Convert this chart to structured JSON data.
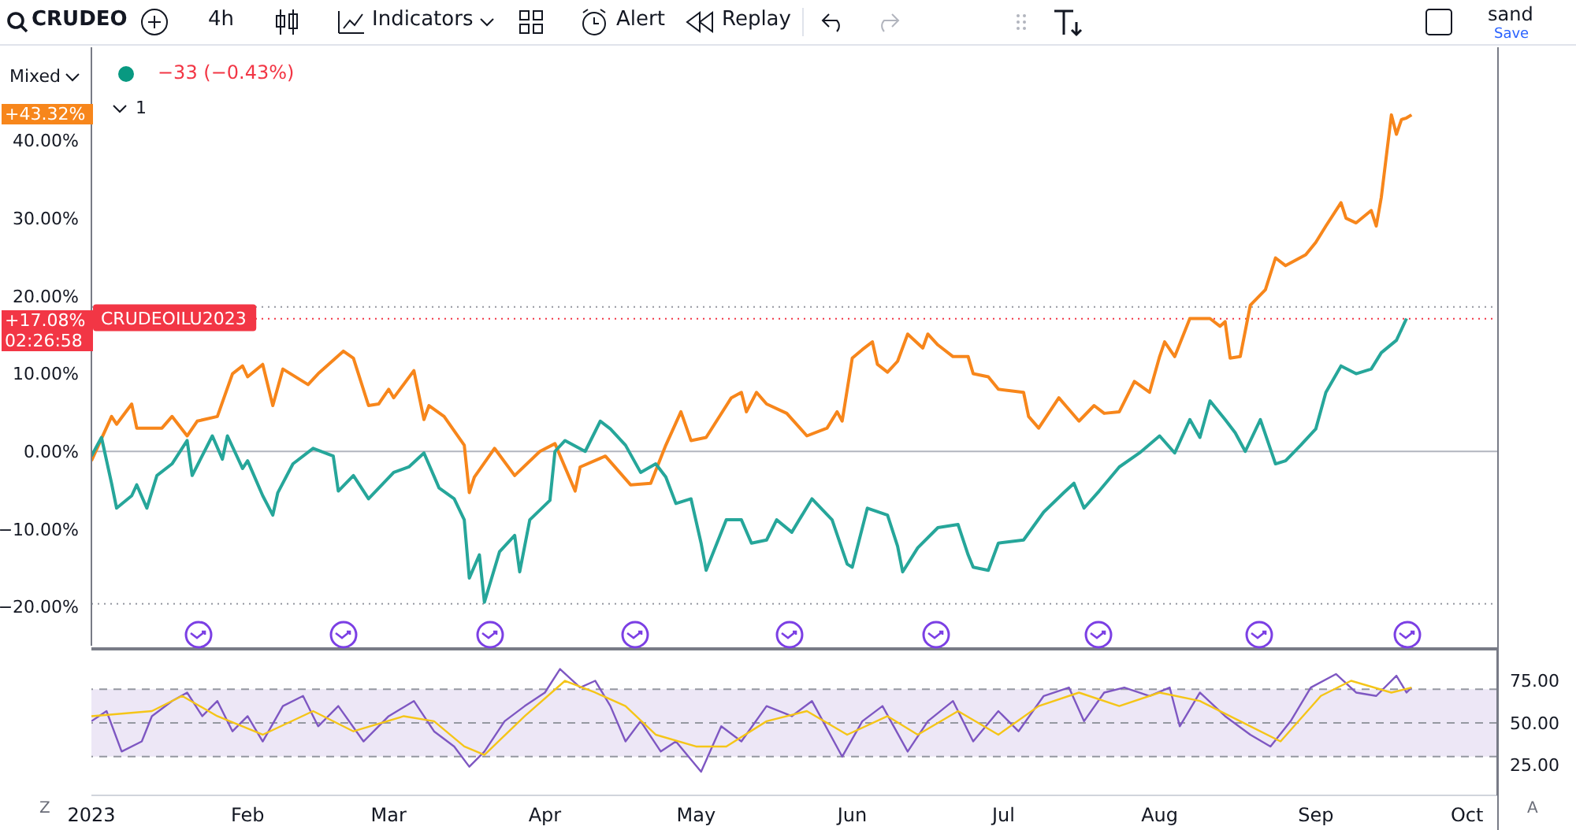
{
  "chart_data": [
    {
      "type": "line",
      "xlim": [
        "2023-01-01",
        "2023-10-07"
      ],
      "ylim": [
        -25,
        52
      ],
      "yticks": [
        {
          "value": 40,
          "label": "40.00%"
        },
        {
          "value": 30,
          "label": "30.00%"
        },
        {
          "value": 20,
          "label": "20.00%"
        },
        {
          "value": 10,
          "label": "10.00%"
        },
        {
          "value": 0,
          "label": "0.00%"
        },
        {
          "value": -10,
          "label": "−10.00%"
        },
        {
          "value": -20,
          "label": "−20.00%"
        }
      ],
      "tick_labels": "y",
      "grid": false,
      "series": [
        {
          "color": "#f7861b",
          "x": [
            "2023-01-01",
            "2023-01-05",
            "2023-01-06",
            "2023-01-09",
            "2023-01-10",
            "2023-01-15",
            "2023-01-17",
            "2023-01-20",
            "2023-01-22",
            "2023-01-26",
            "2023-01-29",
            "2023-01-31",
            "2023-02-01",
            "2023-02-04",
            "2023-02-06",
            "2023-02-08",
            "2023-02-13",
            "2023-02-15",
            "2023-02-20",
            "2023-02-22",
            "2023-02-25",
            "2023-02-27",
            "2023-03-01",
            "2023-03-02",
            "2023-03-06",
            "2023-03-08",
            "2023-03-09",
            "2023-03-12",
            "2023-03-16",
            "2023-03-17",
            "2023-03-18",
            "2023-03-22",
            "2023-03-26",
            "2023-03-31",
            "2023-04-03",
            "2023-04-07",
            "2023-04-08",
            "2023-04-13",
            "2023-04-18",
            "2023-04-22",
            "2023-04-25",
            "2023-04-28",
            "2023-04-30",
            "2023-05-03",
            "2023-05-08",
            "2023-05-10",
            "2023-05-11",
            "2023-05-13",
            "2023-05-15",
            "2023-05-19",
            "2023-05-23",
            "2023-05-27",
            "2023-05-29",
            "2023-05-30",
            "2023-06-01",
            "2023-06-03",
            "2023-06-05",
            "2023-06-06",
            "2023-06-08",
            "2023-06-10",
            "2023-06-12",
            "2023-06-15",
            "2023-06-16",
            "2023-06-18",
            "2023-06-21",
            "2023-06-24",
            "2023-06-25",
            "2023-06-28",
            "2023-06-30",
            "2023-07-05",
            "2023-07-06",
            "2023-07-08",
            "2023-07-12",
            "2023-07-16",
            "2023-07-19",
            "2023-07-21",
            "2023-07-24",
            "2023-07-27",
            "2023-07-30",
            "2023-08-01",
            "2023-08-02",
            "2023-08-04",
            "2023-08-07",
            "2023-08-11",
            "2023-08-13",
            "2023-08-14",
            "2023-08-15",
            "2023-08-17",
            "2023-08-19",
            "2023-08-22",
            "2023-08-24",
            "2023-08-26",
            "2023-08-30",
            "2023-09-01",
            "2023-09-03",
            "2023-09-06",
            "2023-09-07",
            "2023-09-09",
            "2023-09-12",
            "2023-09-13",
            "2023-09-14",
            "2023-09-16",
            "2023-09-17",
            "2023-09-18",
            "2023-09-19",
            "2023-09-20"
          ],
          "values": [
            -1.2,
            4.5,
            3.5,
            6.1,
            3,
            3,
            4.5,
            2,
            3.9,
            4.5,
            10,
            11,
            9.6,
            11.2,
            5.9,
            10.6,
            8.6,
            10,
            12.9,
            12,
            5.9,
            6.1,
            8,
            6.9,
            10.4,
            4.1,
            5.9,
            4.5,
            0.8,
            -5.3,
            -3.3,
            0.4,
            -3.1,
            0,
            1,
            -5.1,
            -2,
            -0.6,
            -4.3,
            -4.1,
            0.8,
            5.1,
            1.4,
            1.8,
            6.9,
            7.6,
            5.1,
            7.6,
            6.1,
            4.9,
            2,
            3,
            5.1,
            3.9,
            12,
            13.1,
            14.1,
            11.2,
            10.2,
            11.6,
            15.1,
            13.3,
            15.1,
            13.7,
            12.2,
            12.2,
            10,
            9.6,
            8,
            7.6,
            4.5,
            3,
            6.9,
            3.9,
            5.9,
            4.9,
            5.1,
            9,
            7.6,
            12.2,
            14.1,
            12.2,
            17.1,
            17.1,
            16.1,
            16.7,
            12,
            12.2,
            18.8,
            20.8,
            24.9,
            23.9,
            25.3,
            26.9,
            29,
            32,
            30,
            29.4,
            31,
            29,
            32.7,
            43.3,
            40.8,
            42.7,
            42.9,
            43.3
          ]
        },
        {
          "name": "CRUDEOILU2023",
          "color": "#26a69a",
          "x": [
            "2023-01-01",
            "2023-01-03",
            "2023-01-05",
            "2023-01-06",
            "2023-01-09",
            "2023-01-10",
            "2023-01-12",
            "2023-01-14",
            "2023-01-17",
            "2023-01-20",
            "2023-01-21",
            "2023-01-25",
            "2023-01-27",
            "2023-01-28",
            "2023-01-31",
            "2023-02-01",
            "2023-02-04",
            "2023-02-06",
            "2023-02-07",
            "2023-02-10",
            "2023-02-14",
            "2023-02-18",
            "2023-02-19",
            "2023-02-22",
            "2023-02-25",
            "2023-03-02",
            "2023-03-05",
            "2023-03-08",
            "2023-03-11",
            "2023-03-14",
            "2023-03-16",
            "2023-03-17",
            "2023-03-19",
            "2023-03-20",
            "2023-03-23",
            "2023-03-26",
            "2023-03-27",
            "2023-03-29",
            "2023-04-02",
            "2023-04-03",
            "2023-04-05",
            "2023-04-09",
            "2023-04-12",
            "2023-04-14",
            "2023-04-17",
            "2023-04-20",
            "2023-04-23",
            "2023-04-25",
            "2023-04-27",
            "2023-04-30",
            "2023-05-02",
            "2023-05-03",
            "2023-05-07",
            "2023-05-10",
            "2023-05-12",
            "2023-05-15",
            "2023-05-17",
            "2023-05-20",
            "2023-05-24",
            "2023-05-28",
            "2023-05-31",
            "2023-06-01",
            "2023-06-04",
            "2023-06-08",
            "2023-06-10",
            "2023-06-11",
            "2023-06-14",
            "2023-06-18",
            "2023-06-22",
            "2023-06-24",
            "2023-06-25",
            "2023-06-28",
            "2023-06-30",
            "2023-07-05",
            "2023-07-09",
            "2023-07-13",
            "2023-07-15",
            "2023-07-17",
            "2023-07-20",
            "2023-07-24",
            "2023-07-28",
            "2023-08-01",
            "2023-08-04",
            "2023-08-07",
            "2023-08-09",
            "2023-08-11",
            "2023-08-14",
            "2023-08-16",
            "2023-08-18",
            "2023-08-21",
            "2023-08-24",
            "2023-08-26",
            "2023-08-29",
            "2023-09-01",
            "2023-09-03",
            "2023-09-06",
            "2023-09-09",
            "2023-09-12",
            "2023-09-14",
            "2023-09-17",
            "2023-09-18",
            "2023-09-19"
          ],
          "values": [
            -0.6,
            1.8,
            -4.1,
            -7.3,
            -5.7,
            -4.3,
            -7.3,
            -3.1,
            -1.6,
            1.4,
            -3.1,
            2,
            -1,
            2,
            -2.2,
            -1.2,
            -5.7,
            -8.2,
            -5.3,
            -1.6,
            0.4,
            -0.6,
            -5.1,
            -3.1,
            -6.1,
            -2.7,
            -2,
            -0.2,
            -4.7,
            -6.1,
            -8.8,
            -16.3,
            -13.3,
            -19.4,
            -12.9,
            -10.8,
            -15.5,
            -8.8,
            -6.3,
            0,
            1.4,
            0,
            3.9,
            2.9,
            0.8,
            -2.7,
            -1.6,
            -3.3,
            -6.7,
            -6.1,
            -11.8,
            -15.3,
            -8.8,
            -8.8,
            -11.8,
            -11.4,
            -8.8,
            -10.4,
            -6.1,
            -8.8,
            -14.5,
            -14.9,
            -7.3,
            -8.2,
            -12.2,
            -15.5,
            -12.4,
            -9.8,
            -9.4,
            -13.3,
            -14.9,
            -15.3,
            -11.8,
            -11.4,
            -7.8,
            -5.3,
            -4.1,
            -7.3,
            -5.1,
            -2,
            -0.2,
            2,
            -0.2,
            4.1,
            1.8,
            6.5,
            4.1,
            2.4,
            0,
            4.1,
            -1.6,
            -1.2,
            0.8,
            2.9,
            7.6,
            11,
            10,
            10.6,
            12.7,
            14.3,
            15.7,
            17.1
          ]
        }
      ],
      "ref_lines": [
        {
          "axis": "y",
          "value": 0,
          "color": "#b2b5be",
          "line_style": "solid"
        },
        {
          "axis": "y",
          "value": 18.6,
          "color": "#9598a1",
          "line_style": "dotted"
        },
        {
          "axis": "y",
          "value": -19.6,
          "color": "#9598a1",
          "line_style": "dotted"
        },
        {
          "axis": "y",
          "value": 17.08,
          "color": "#f23645",
          "line_style": "dotted"
        }
      ],
      "annotations": [
        "+43.32%",
        "+17.08%",
        "02:26:58",
        "−33 (−0.43%)",
        "CRUDEO",
        "4h",
        "Indicators",
        "Alert",
        "Replay",
        "sand",
        "Save",
        "Mixed",
        "1"
      ]
    },
    {
      "type": "line",
      "xlim": [
        "2023-01-01",
        "2023-10-07"
      ],
      "ylim": [
        7,
        93
      ],
      "xticks": [
        {
          "value": "2023-01-01",
          "label": "2023"
        },
        {
          "value": "2023-02-01",
          "label": "Feb"
        },
        {
          "value": "2023-03-01",
          "label": "Mar"
        },
        {
          "value": "2023-04-01",
          "label": "Apr"
        },
        {
          "value": "2023-05-01",
          "label": "May"
        },
        {
          "value": "2023-06-01",
          "label": "Jun"
        },
        {
          "value": "2023-07-01",
          "label": "Jul"
        },
        {
          "value": "2023-08-01",
          "label": "Aug"
        },
        {
          "value": "2023-09-01",
          "label": "Sep"
        },
        {
          "value": "2023-10-01",
          "label": "Oct"
        }
      ],
      "yticks": [
        {
          "value": 75,
          "label": "75.00"
        },
        {
          "value": 50,
          "label": "50.00"
        },
        {
          "value": 25,
          "label": "25.00"
        }
      ],
      "grid": false,
      "series": [
        {
          "color": "#7e57c2",
          "x": [
            "2023-01-01",
            "2023-01-04",
            "2023-01-07",
            "2023-01-11",
            "2023-01-13",
            "2023-01-17",
            "2023-01-20",
            "2023-01-23",
            "2023-01-26",
            "2023-01-29",
            "2023-02-01",
            "2023-02-04",
            "2023-02-08",
            "2023-02-12",
            "2023-02-15",
            "2023-02-19",
            "2023-02-24",
            "2023-03-01",
            "2023-03-06",
            "2023-03-10",
            "2023-03-14",
            "2023-03-17",
            "2023-03-20",
            "2023-03-24",
            "2023-03-28",
            "2023-04-01",
            "2023-04-04",
            "2023-04-08",
            "2023-04-11",
            "2023-04-14",
            "2023-04-17",
            "2023-04-20",
            "2023-04-24",
            "2023-04-27",
            "2023-05-02",
            "2023-05-06",
            "2023-05-10",
            "2023-05-15",
            "2023-05-20",
            "2023-05-24",
            "2023-05-30",
            "2023-06-03",
            "2023-06-07",
            "2023-06-12",
            "2023-06-16",
            "2023-06-21",
            "2023-06-25",
            "2023-06-30",
            "2023-07-04",
            "2023-07-09",
            "2023-07-14",
            "2023-07-17",
            "2023-07-21",
            "2023-07-25",
            "2023-07-30",
            "2023-08-03",
            "2023-08-05",
            "2023-08-09",
            "2023-08-14",
            "2023-08-19",
            "2023-08-23",
            "2023-08-27",
            "2023-08-31",
            "2023-09-05",
            "2023-09-09",
            "2023-09-13",
            "2023-09-17",
            "2023-09-19",
            "2023-09-20"
          ],
          "values": [
            51,
            57,
            33,
            39,
            54,
            63,
            68,
            54,
            63,
            45,
            54,
            39,
            60,
            66,
            48,
            60,
            39,
            54,
            63,
            45,
            36,
            24,
            33,
            51,
            60,
            68,
            82,
            71,
            75,
            60,
            39,
            51,
            33,
            39,
            21,
            48,
            39,
            60,
            54,
            63,
            30,
            51,
            60,
            33,
            51,
            63,
            39,
            57,
            45,
            66,
            71,
            51,
            68,
            71,
            66,
            71,
            48,
            68,
            54,
            43,
            36,
            51,
            71,
            79,
            68,
            66,
            78,
            68,
            71
          ]
        },
        {
          "color": "#f5c518",
          "x": [
            "2023-01-01",
            "2023-01-13",
            "2023-01-19",
            "2023-01-26",
            "2023-02-04",
            "2023-02-14",
            "2023-02-22",
            "2023-03-04",
            "2023-03-10",
            "2023-03-16",
            "2023-03-20",
            "2023-03-28",
            "2023-04-05",
            "2023-04-11",
            "2023-04-17",
            "2023-04-23",
            "2023-05-01",
            "2023-05-07",
            "2023-05-15",
            "2023-05-23",
            "2023-05-31",
            "2023-06-08",
            "2023-06-14",
            "2023-06-22",
            "2023-06-30",
            "2023-07-08",
            "2023-07-16",
            "2023-07-24",
            "2023-08-01",
            "2023-08-09",
            "2023-08-17",
            "2023-08-25",
            "2023-09-02",
            "2023-09-08",
            "2023-09-16",
            "2023-09-20"
          ],
          "values": [
            54,
            57,
            66,
            54,
            43,
            57,
            45,
            54,
            51,
            36,
            31,
            54,
            75,
            68,
            60,
            43,
            36,
            36,
            51,
            57,
            43,
            54,
            43,
            57,
            43,
            60,
            68,
            60,
            68,
            63,
            51,
            39,
            66,
            75,
            68,
            71
          ]
        }
      ],
      "bands": [
        {
          "axis": "y",
          "from": 30,
          "to": 70,
          "color": "#ede7f6"
        }
      ],
      "ref_lines": [
        {
          "axis": "y",
          "value": 70,
          "color": "#9598a1",
          "line_style": "dashed"
        },
        {
          "axis": "y",
          "value": 50,
          "color": "#9598a1",
          "line_style": "dashed"
        },
        {
          "axis": "y",
          "value": 30,
          "color": "#9598a1",
          "line_style": "dashed"
        }
      ],
      "annotations": [
        "Z",
        "A"
      ]
    }
  ]
}
